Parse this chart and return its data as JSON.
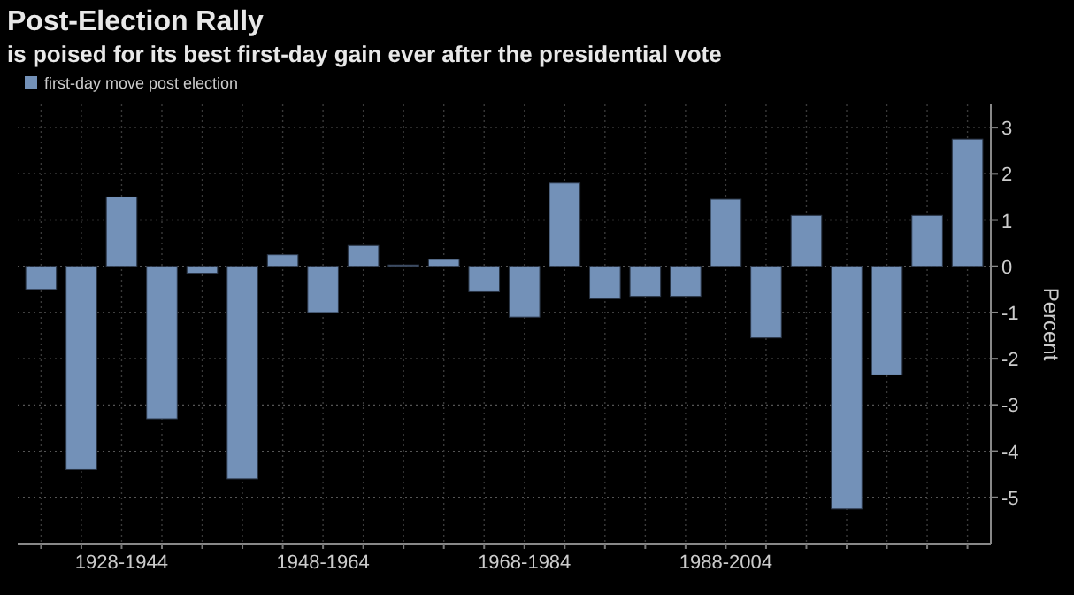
{
  "chart_data": {
    "type": "bar",
    "title": "Post-Election Rally",
    "subtitle": "is poised for its best first-day gain ever after the presidential vote",
    "ylabel": "Percent",
    "categories": [
      null,
      null,
      "1928-1944",
      null,
      null,
      null,
      null,
      "1948-1964",
      null,
      null,
      null,
      null,
      "1968-1984",
      null,
      null,
      null,
      null,
      "1988-2004",
      null,
      null,
      null,
      null,
      null,
      null
    ],
    "series": [
      {
        "name": "first-day move post election",
        "color": "#7391b8",
        "values": [
          -0.5,
          -4.4,
          1.5,
          -3.3,
          -0.15,
          -4.6,
          0.25,
          -1.0,
          0.45,
          0.03,
          0.15,
          -0.55,
          -1.1,
          1.8,
          -0.7,
          -0.65,
          -0.65,
          1.45,
          -1.55,
          1.1,
          -5.25,
          -2.35,
          1.1,
          2.75
        ]
      }
    ],
    "ylim": [
      -6,
      3.5
    ],
    "yticks": [
      -5,
      -4,
      -3,
      -2,
      -1,
      0,
      1,
      2,
      3
    ],
    "grid": true,
    "legend": "top left"
  }
}
